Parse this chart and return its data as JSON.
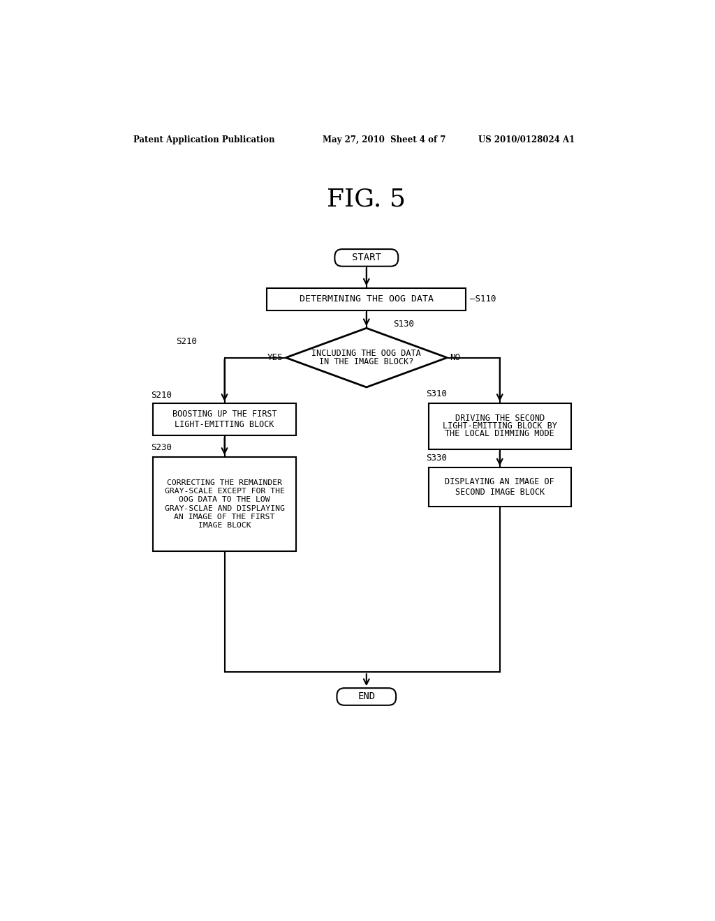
{
  "title": "FIG. 5",
  "header_left": "Patent Application Publication",
  "header_mid": "May 27, 2010  Sheet 4 of 7",
  "header_right": "US 2010/0128024 A1",
  "background_color": "#ffffff",
  "line_color": "#000000",
  "text_color": "#000000",
  "start_label": "START",
  "end_label": "END",
  "s110_text": "DETERMINING THE OOG DATA",
  "s110_ref": "S110",
  "s130_line1": "INCLUDING THE OOG DATA",
  "s130_line2": "IN THE IMAGE BLOCK?",
  "s130_ref": "S130",
  "yes_label": "YES",
  "no_label": "NO",
  "s210_ref": "S210",
  "s210_line1": "BOOSTING UP THE FIRST",
  "s210_line2": "LIGHT-EMITTING BLOCK",
  "s230_ref": "S230",
  "s230_lines": [
    "CORRECTING THE REMAINDER",
    "GRAY-SCALE EXCEPT FOR THE",
    "OOG DATA TO THE LOW",
    "GRAY-SCLAE AND DISPLAYING",
    "AN IMAGE OF THE FIRST",
    "IMAGE BLOCK"
  ],
  "s310_ref": "S310",
  "s310_line1": "DRIVING THE SECOND",
  "s310_line2": "LIGHT-EMITTING BLOCK BY",
  "s310_line3": "THE LOCAL DIMMING MODE",
  "s330_ref": "S330",
  "s330_line1": "DISPLAYING AN IMAGE OF",
  "s330_line2": "SECOND IMAGE BLOCK"
}
